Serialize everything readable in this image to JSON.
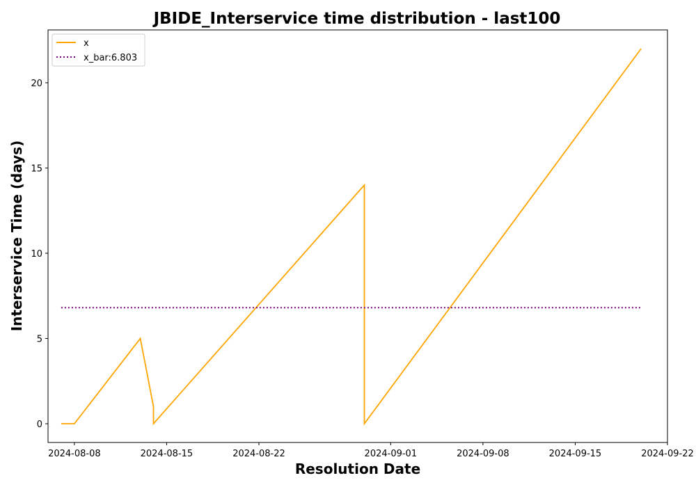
{
  "chart_data": {
    "type": "line",
    "title": "JBIDE_Interservice time distribution - last100",
    "xlabel": "Resolution Date",
    "ylabel": "Interservice Time (days)",
    "x_is_date": true,
    "xlim": [
      "2024-08-06",
      "2024-09-22"
    ],
    "ylim": [
      -1.1,
      23.1
    ],
    "x_ticks": [
      "2024-08-08",
      "2024-08-15",
      "2024-08-22",
      "2024-09-01",
      "2024-09-08",
      "2024-09-15",
      "2024-09-22"
    ],
    "y_ticks": [
      0,
      5,
      10,
      15,
      20
    ],
    "grid": false,
    "legend_position": "upper left",
    "series": [
      {
        "name": "x",
        "style": "solid",
        "color": "#ffa500",
        "x": [
          "2024-08-07",
          "2024-08-08",
          "2024-08-13",
          "2024-08-14",
          "2024-08-14",
          "2024-08-30",
          "2024-08-30",
          "2024-09-20"
        ],
        "y": [
          0,
          0,
          5,
          1,
          0,
          14,
          0,
          22
        ]
      },
      {
        "name": "x_bar:6.803",
        "style": "dotted",
        "color": "#800080",
        "x": [
          "2024-08-07",
          "2024-09-20"
        ],
        "y": [
          6.803,
          6.803
        ]
      }
    ]
  }
}
